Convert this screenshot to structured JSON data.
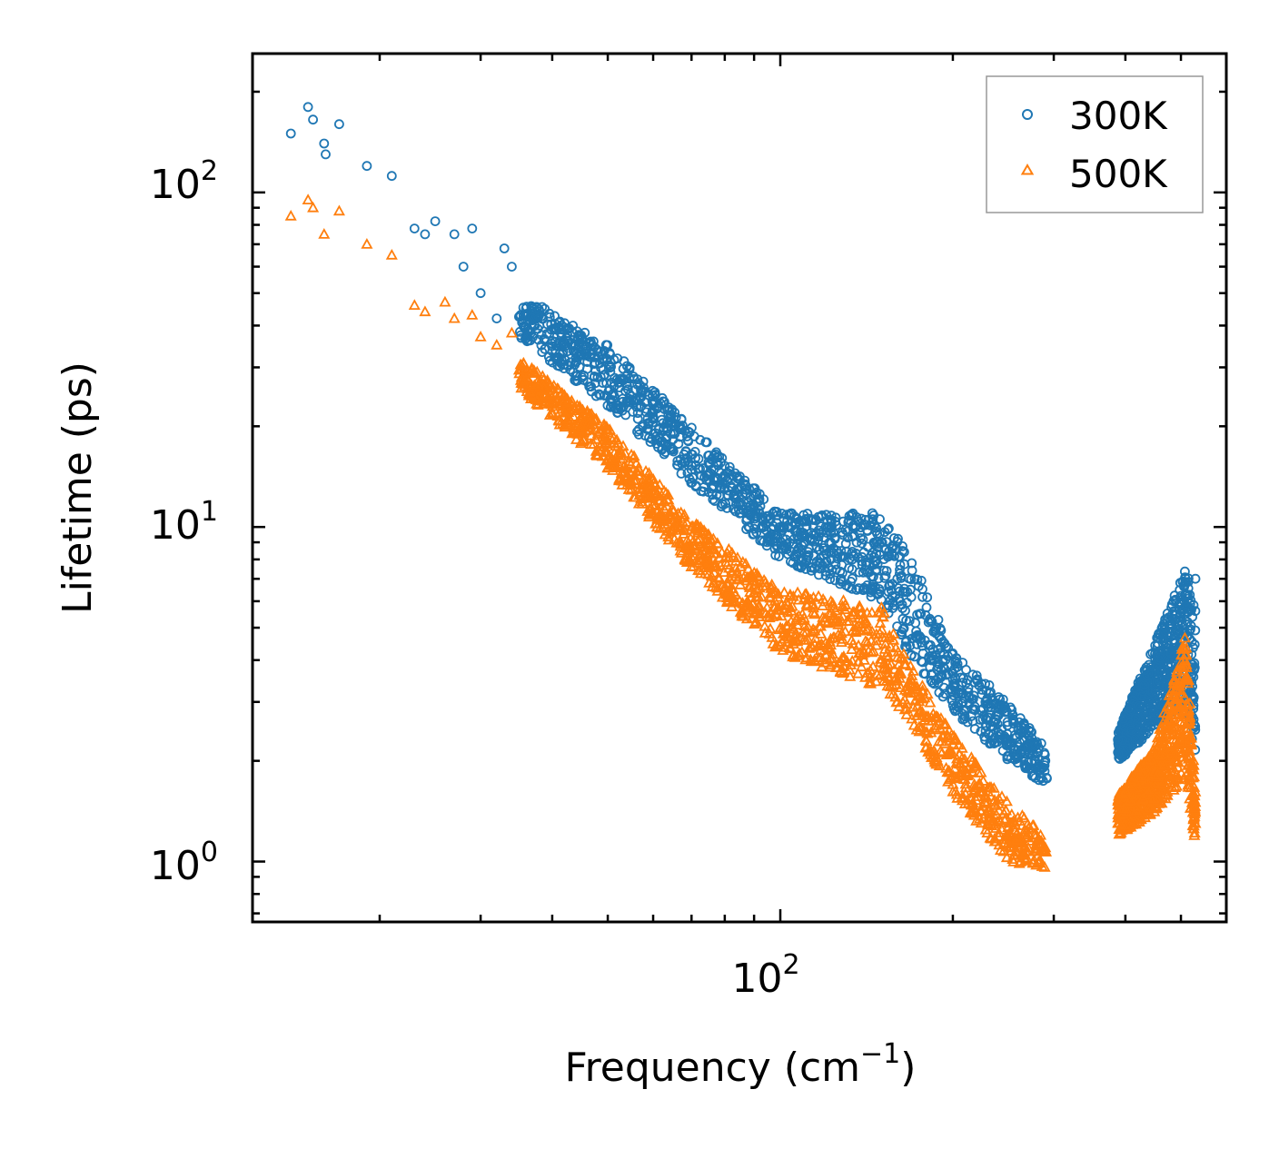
{
  "chart_data": {
    "type": "scatter",
    "title": "",
    "xlabel": "Frequency (cm",
    "xlabel_sup": "−1",
    "xlabel_close": ")",
    "ylabel": "Lifetime (ps)",
    "xscale": "log",
    "yscale": "log",
    "xlim": [
      12,
      600
    ],
    "ylim": [
      0.66,
      260
    ],
    "x_ticks": [
      {
        "base": "10",
        "exp": "2",
        "value": 100
      }
    ],
    "y_ticks": [
      {
        "base": "10",
        "exp": "0",
        "value": 1
      },
      {
        "base": "10",
        "exp": "1",
        "value": 10
      },
      {
        "base": "10",
        "exp": "2",
        "value": 100
      }
    ],
    "legend_position": "top-right",
    "series": [
      {
        "name": "300K",
        "color": "#1f77b4",
        "marker": "circle",
        "sample_points": [
          [
            14,
            150
          ],
          [
            15,
            180
          ],
          [
            15.3,
            165
          ],
          [
            16,
            140
          ],
          [
            16.1,
            130
          ],
          [
            17,
            160
          ],
          [
            19,
            120
          ],
          [
            21,
            112
          ],
          [
            23,
            78
          ],
          [
            24,
            75
          ],
          [
            25,
            82
          ],
          [
            27,
            75
          ],
          [
            28,
            60
          ],
          [
            29,
            78
          ],
          [
            30,
            50
          ],
          [
            32,
            42
          ],
          [
            33,
            68
          ],
          [
            34,
            60
          ],
          [
            36,
            45
          ],
          [
            38,
            40
          ],
          [
            40,
            36
          ],
          [
            44,
            32
          ],
          [
            48,
            28
          ],
          [
            55,
            24
          ],
          [
            60,
            21
          ],
          [
            65,
            19
          ],
          [
            70,
            16.5
          ],
          [
            80,
            13
          ],
          [
            90,
            11.5
          ],
          [
            100,
            10
          ],
          [
            110,
            9.5
          ],
          [
            120,
            10
          ],
          [
            130,
            9.8
          ],
          [
            140,
            10.2
          ],
          [
            150,
            9
          ],
          [
            160,
            7
          ],
          [
            175,
            5.5
          ],
          [
            190,
            4.2
          ],
          [
            200,
            3.5
          ],
          [
            230,
            2.7
          ],
          [
            260,
            2.2
          ],
          [
            290,
            2
          ],
          [
            400,
            2.3
          ],
          [
            450,
            3.5
          ],
          [
            500,
            5.5
          ],
          [
            530,
            7
          ]
        ],
        "band": [
          [
            35,
            37,
            50
          ],
          [
            50,
            23,
            35
          ],
          [
            70,
            13.5,
            20
          ],
          [
            100,
            8,
            11
          ],
          [
            150,
            6,
            11
          ],
          [
            170,
            4,
            8
          ],
          [
            200,
            2.8,
            4.2
          ],
          [
            250,
            2,
            3
          ],
          [
            290,
            1.7,
            2.2
          ],
          [
            390,
            2,
            2.5
          ],
          [
            450,
            2.5,
            4.5
          ],
          [
            510,
            3,
            7.5
          ],
          [
            530,
            2,
            6
          ]
        ]
      },
      {
        "name": "500K",
        "color": "#ff7f0e",
        "marker": "triangle",
        "sample_points": [
          [
            14,
            85
          ],
          [
            15,
            95
          ],
          [
            15.3,
            90
          ],
          [
            16,
            75
          ],
          [
            17,
            88
          ],
          [
            19,
            70
          ],
          [
            21,
            65
          ],
          [
            23,
            46
          ],
          [
            24,
            44
          ],
          [
            26,
            47
          ],
          [
            27,
            42
          ],
          [
            29,
            43
          ],
          [
            30,
            37
          ],
          [
            32,
            35
          ],
          [
            34,
            38
          ],
          [
            36,
            28
          ],
          [
            40,
            22
          ],
          [
            45,
            18
          ],
          [
            50,
            15
          ],
          [
            55,
            13
          ],
          [
            60,
            11
          ],
          [
            70,
            8.5
          ],
          [
            80,
            6.5
          ],
          [
            90,
            5.5
          ],
          [
            100,
            5
          ],
          [
            120,
            4.5
          ],
          [
            140,
            4.2
          ],
          [
            160,
            3
          ],
          [
            180,
            2.2
          ],
          [
            200,
            1.7
          ],
          [
            230,
            1.3
          ],
          [
            260,
            1.15
          ],
          [
            290,
            1.1
          ],
          [
            400,
            1.4
          ],
          [
            450,
            1.8
          ],
          [
            500,
            3.8
          ],
          [
            530,
            1.3
          ]
        ],
        "band": [
          [
            35,
            26,
            32
          ],
          [
            50,
            15,
            20
          ],
          [
            70,
            7.5,
            10.5
          ],
          [
            100,
            4.2,
            6.5
          ],
          [
            150,
            3.3,
            5.8
          ],
          [
            170,
            2.5,
            3.8
          ],
          [
            200,
            1.6,
            2.4
          ],
          [
            250,
            1.0,
            1.5
          ],
          [
            290,
            0.95,
            1.2
          ],
          [
            390,
            1.2,
            1.6
          ],
          [
            450,
            1.4,
            2.2
          ],
          [
            510,
            1.8,
            4.8
          ],
          [
            530,
            1.1,
            1.6
          ]
        ]
      }
    ]
  }
}
